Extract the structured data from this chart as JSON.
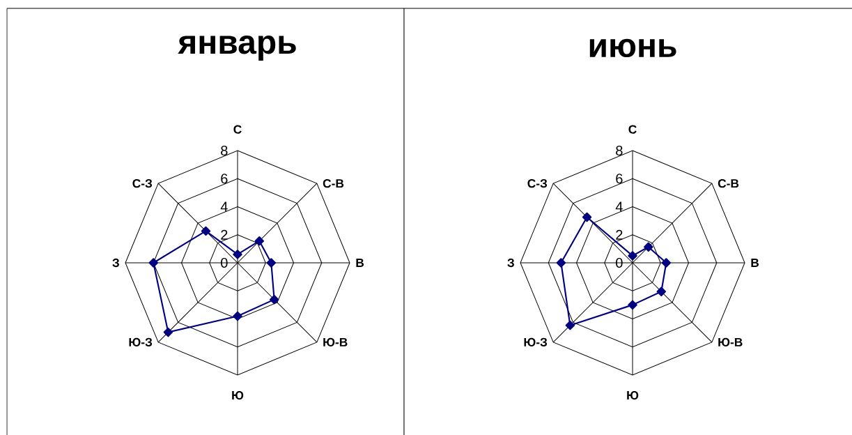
{
  "chart_data": [
    {
      "type": "radar",
      "title": "январь",
      "categories": [
        "С",
        "С-В",
        "В",
        "Ю-В",
        "Ю",
        "Ю-З",
        "З",
        "С-З"
      ],
      "series": [
        {
          "color": "#000080",
          "values": [
            0.6,
            2.2,
            2.4,
            3.7,
            3.8,
            7.0,
            6.0,
            3.2
          ]
        }
      ],
      "ylim": [
        0,
        8
      ],
      "yticks": [
        0,
        2,
        4,
        6,
        8
      ],
      "grid": true,
      "marker": "diamond",
      "line_style": "solid"
    },
    {
      "type": "radar",
      "title": "июнь",
      "categories": [
        "С",
        "С-В",
        "В",
        "Ю-В",
        "Ю",
        "Ю-З",
        "З",
        "С-З"
      ],
      "series": [
        {
          "color": "#000080",
          "values": [
            0.5,
            1.6,
            2.4,
            2.9,
            3.0,
            6.3,
            5.1,
            4.6
          ]
        }
      ],
      "ylim": [
        0,
        8
      ],
      "yticks": [
        0,
        2,
        4,
        6,
        8
      ],
      "grid": true,
      "marker": "diamond",
      "line_style": "solid"
    }
  ]
}
